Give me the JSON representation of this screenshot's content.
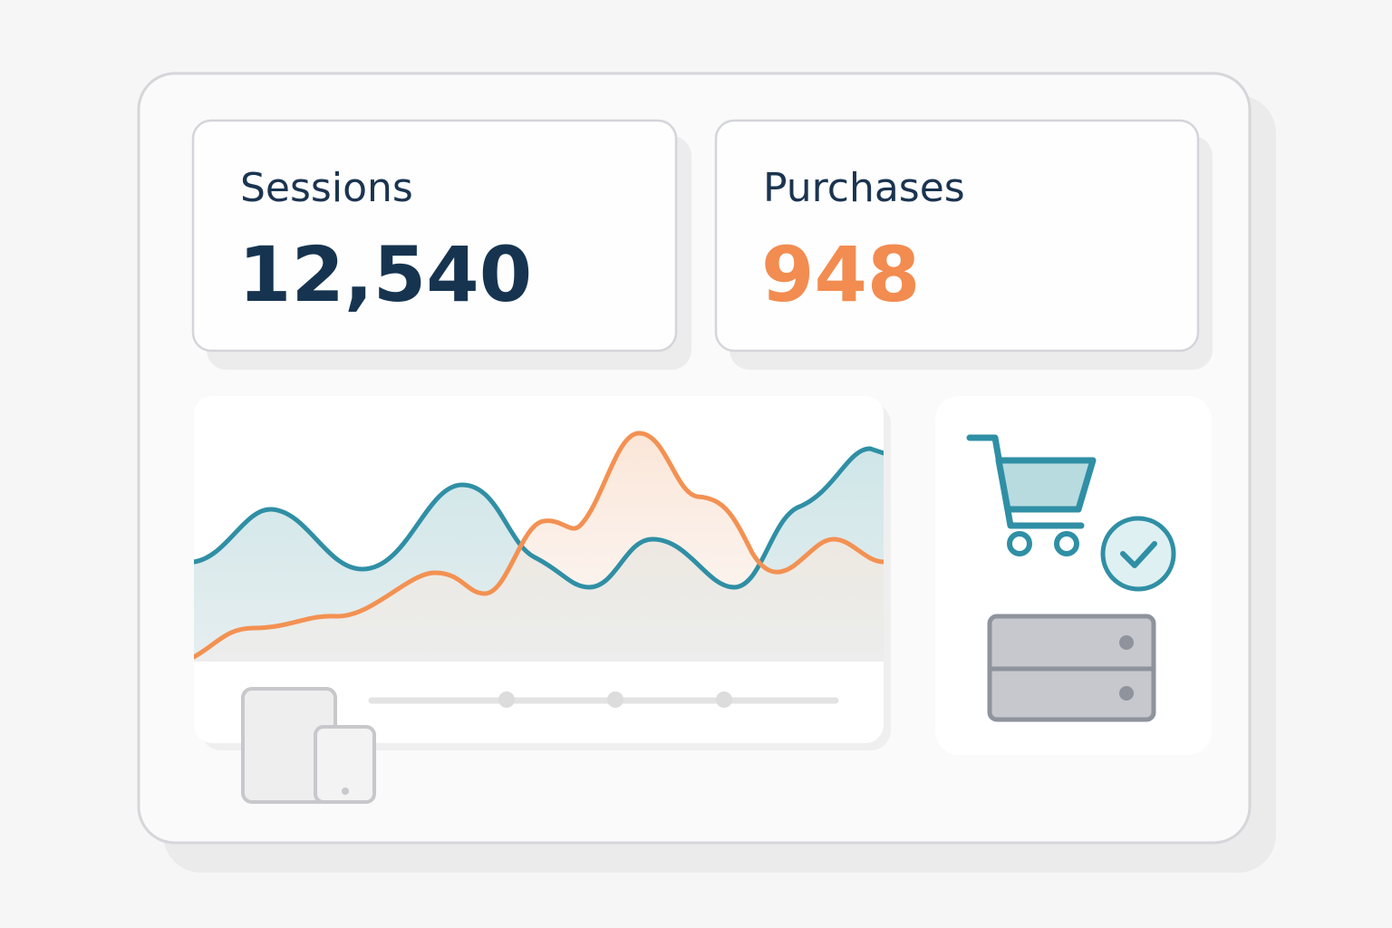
{
  "cards": [
    {
      "label": "Sessions",
      "value": "12,540"
    },
    {
      "label": "Purchases",
      "value": "948"
    }
  ]
}
